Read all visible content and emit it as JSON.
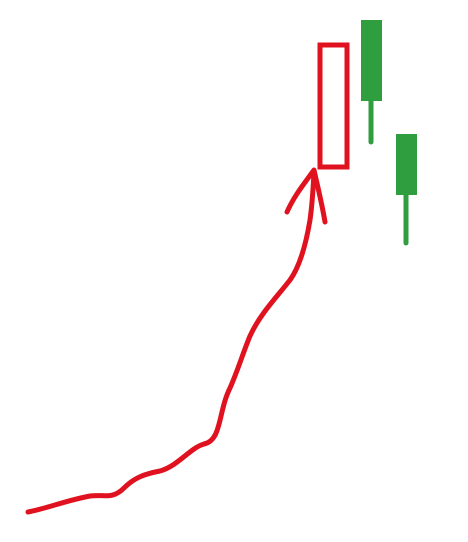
{
  "colors": {
    "background": "#ffffff",
    "trend_line": "#e0121f",
    "bearish_candle": "#e0121f",
    "bullish_candle": "#2e9e3e"
  },
  "elements": {
    "trend_line": "hand-drawn-uptrend-curve",
    "arrow": "arrowhead-pointing-up",
    "candle_1": "hollow-red-candle",
    "candle_2": "filled-green-candle-with-lower-wick",
    "candle_3": "filled-green-candle-with-lower-wick"
  }
}
